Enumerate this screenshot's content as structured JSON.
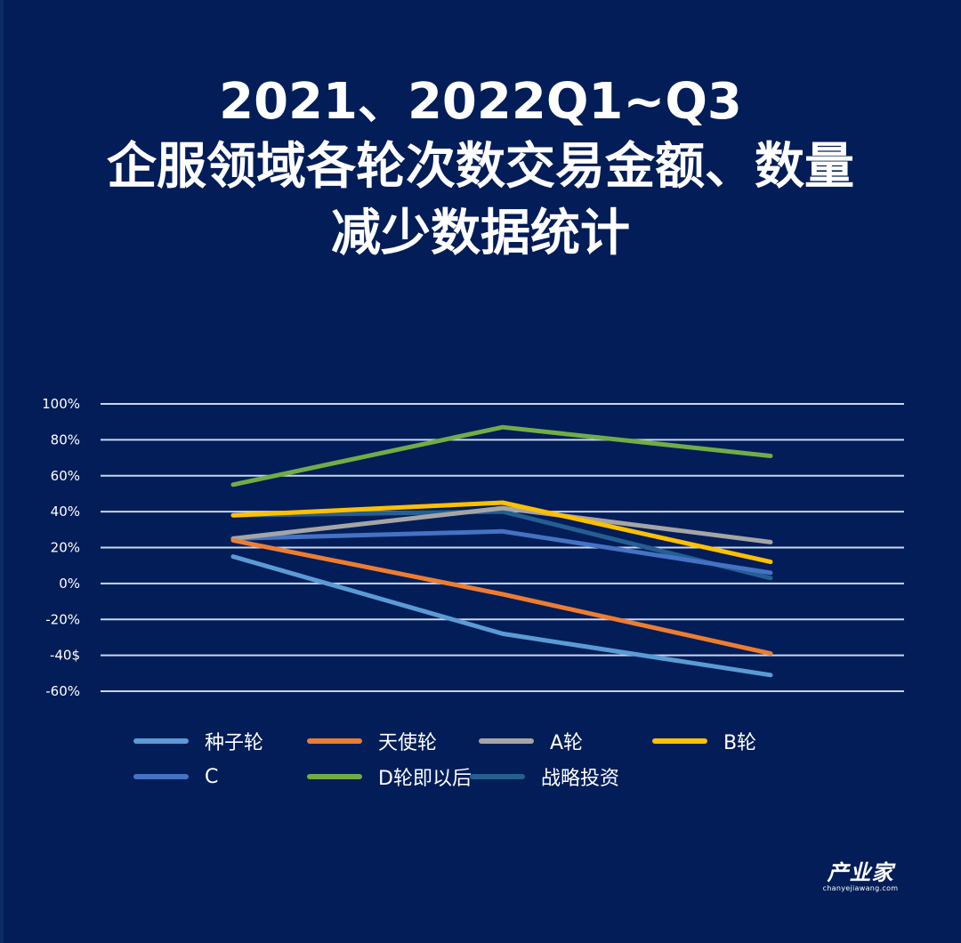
{
  "title": {
    "line1": "2021、2022Q1~Q3",
    "line2": "企服领域各轮次数交易金额、数量",
    "line3": "减少数据统计"
  },
  "logo": {
    "main": "产业家",
    "sub": "chanyejiawang.com"
  },
  "y_axis": {
    "ticks": [
      "100%",
      "80%",
      "60%",
      "40%",
      "20%",
      "0%",
      "-20%",
      "-40$",
      "-60%"
    ]
  },
  "chart_data": {
    "type": "line",
    "title": "2021、2022Q1~Q3 企服领域各轮次数交易金额、数量减少数据统计",
    "xlabel": "",
    "ylabel": "",
    "categories": [
      "",
      "",
      ""
    ],
    "ylim": [
      -60,
      100
    ],
    "yticks": [
      100,
      80,
      60,
      40,
      20,
      0,
      -20,
      -40,
      -60
    ],
    "ytick_labels": [
      "100%",
      "80%",
      "60%",
      "40%",
      "20%",
      "0%",
      "-20%",
      "-40$",
      "-60%"
    ],
    "grid": true,
    "legend_position": "bottom",
    "series": [
      {
        "name": "种子轮",
        "color": "#5b9bd5",
        "values": [
          15,
          -28,
          -51
        ]
      },
      {
        "name": "天使轮",
        "color": "#ed7d31",
        "values": [
          24,
          -6,
          -39
        ]
      },
      {
        "name": "A轮",
        "color": "#a5a5a5",
        "values": [
          25,
          42,
          23
        ]
      },
      {
        "name": "B轮",
        "color": "#ffc000",
        "values": [
          38,
          45,
          12
        ]
      },
      {
        "name": "C",
        "color": "#4472c4",
        "values": [
          25,
          29,
          6
        ]
      },
      {
        "name": "D轮即以后",
        "color": "#70ad47",
        "values": [
          55,
          87,
          71
        ]
      },
      {
        "name": "战略投资",
        "color": "#255e91",
        "values": [
          38,
          40,
          3
        ]
      }
    ]
  }
}
